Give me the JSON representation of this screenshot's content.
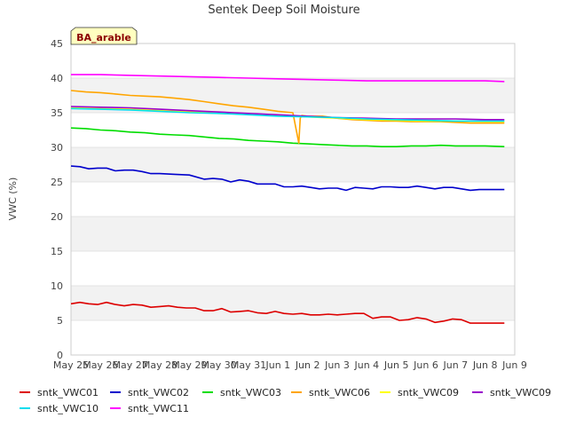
{
  "chart_data": {
    "type": "line",
    "title": "Sentek Deep Soil Moisture",
    "ylabel": "VWC (%)",
    "xlabel": "",
    "badge": "BA_arable",
    "ylim": [
      0,
      45
    ],
    "yticks": [
      0,
      5,
      10,
      15,
      20,
      25,
      30,
      35,
      40,
      45
    ],
    "xlim": [
      0,
      15
    ],
    "xticks": [
      "May 25",
      "May 26",
      "May 27",
      "May 28",
      "May 29",
      "May 30",
      "May 31",
      "Jun 1",
      "Jun 2",
      "Jun 3",
      "Jun 4",
      "Jun 5",
      "Jun 6",
      "Jun 7",
      "Jun 8",
      "Jun 9"
    ],
    "grid": true,
    "legend_position": "bottom",
    "series": [
      {
        "name": "sntk_VWC01",
        "color": "#dd0000",
        "x": [
          0,
          0.3,
          0.6,
          0.9,
          1.2,
          1.5,
          1.8,
          2.1,
          2.4,
          2.7,
          3.0,
          3.3,
          3.6,
          3.9,
          4.2,
          4.5,
          4.8,
          5.1,
          5.4,
          5.7,
          6.0,
          6.3,
          6.6,
          6.9,
          7.2,
          7.5,
          7.8,
          8.1,
          8.4,
          8.7,
          9.0,
          9.3,
          9.6,
          9.9,
          10.2,
          10.5,
          10.8,
          11.1,
          11.4,
          11.7,
          12.0,
          12.3,
          12.6,
          12.9,
          13.2,
          13.5,
          13.8,
          14.1,
          14.4,
          14.65
        ],
        "y": [
          7.4,
          7.6,
          7.4,
          7.3,
          7.6,
          7.3,
          7.1,
          7.3,
          7.2,
          6.9,
          7.0,
          7.1,
          6.9,
          6.8,
          6.8,
          6.4,
          6.4,
          6.7,
          6.2,
          6.3,
          6.4,
          6.1,
          6.0,
          6.3,
          6.0,
          5.9,
          6.0,
          5.8,
          5.8,
          5.9,
          5.8,
          5.9,
          6.0,
          6.0,
          5.3,
          5.5,
          5.5,
          5.0,
          5.1,
          5.4,
          5.2,
          4.7,
          4.9,
          5.2,
          5.1,
          4.6,
          4.6,
          4.6,
          4.6,
          4.6
        ]
      },
      {
        "name": "sntk_VWC02",
        "color": "#0000cc",
        "x": [
          0,
          0.3,
          0.6,
          0.9,
          1.2,
          1.5,
          1.8,
          2.1,
          2.4,
          2.7,
          3.0,
          3.5,
          4.0,
          4.5,
          4.8,
          5.1,
          5.4,
          5.7,
          6.0,
          6.3,
          6.6,
          6.9,
          7.2,
          7.5,
          7.8,
          8.1,
          8.4,
          8.7,
          9.0,
          9.3,
          9.6,
          9.9,
          10.2,
          10.5,
          10.8,
          11.1,
          11.4,
          11.7,
          12.0,
          12.3,
          12.6,
          12.9,
          13.2,
          13.5,
          13.8,
          14.1,
          14.4,
          14.65
        ],
        "y": [
          27.3,
          27.2,
          26.9,
          27.0,
          27.0,
          26.6,
          26.7,
          26.7,
          26.5,
          26.2,
          26.2,
          26.1,
          26.0,
          25.4,
          25.5,
          25.4,
          25.0,
          25.3,
          25.1,
          24.7,
          24.7,
          24.7,
          24.3,
          24.3,
          24.4,
          24.2,
          24.0,
          24.1,
          24.1,
          23.8,
          24.2,
          24.1,
          24.0,
          24.3,
          24.3,
          24.2,
          24.2,
          24.4,
          24.2,
          24.0,
          24.2,
          24.2,
          24.0,
          23.8,
          23.9,
          23.9,
          23.9,
          23.9
        ]
      },
      {
        "name": "sntk_VWC03",
        "color": "#00dd00",
        "x": [
          0,
          0.5,
          1.0,
          1.5,
          2.0,
          2.5,
          3.0,
          3.5,
          4.0,
          4.5,
          5.0,
          5.5,
          6.0,
          6.5,
          7.0,
          7.5,
          8.0,
          8.5,
          9.0,
          9.5,
          10.0,
          10.5,
          11.0,
          11.5,
          12.0,
          12.5,
          13.0,
          13.5,
          14.0,
          14.65
        ],
        "y": [
          32.8,
          32.7,
          32.5,
          32.4,
          32.2,
          32.1,
          31.9,
          31.8,
          31.7,
          31.5,
          31.3,
          31.2,
          31.0,
          30.9,
          30.8,
          30.6,
          30.5,
          30.4,
          30.3,
          30.2,
          30.2,
          30.1,
          30.1,
          30.2,
          30.2,
          30.3,
          30.2,
          30.2,
          30.2,
          30.1
        ]
      },
      {
        "name": "sntk_VWC06",
        "color": "#ffa500",
        "x": [
          0,
          0.5,
          1.0,
          1.5,
          2.0,
          2.5,
          3.0,
          3.5,
          4.0,
          4.5,
          5.0,
          5.5,
          6.0,
          6.5,
          7.0,
          7.5,
          7.7,
          7.75,
          7.8,
          8.0,
          8.5,
          9.0,
          9.5,
          10.0,
          10.5,
          11.0,
          11.5,
          12.0,
          12.5,
          13.0,
          13.5,
          14.0,
          14.65
        ],
        "y": [
          38.2,
          38.0,
          37.9,
          37.7,
          37.5,
          37.4,
          37.3,
          37.1,
          36.9,
          36.6,
          36.3,
          36.0,
          35.8,
          35.5,
          35.2,
          35.0,
          30.6,
          34.2,
          34.6,
          34.5,
          34.5,
          34.2,
          34.0,
          33.9,
          33.8,
          33.8,
          33.7,
          33.7,
          33.7,
          33.6,
          33.5,
          33.5,
          33.5
        ]
      },
      {
        "name": "sntk_VWC09",
        "color": "#ffff00",
        "x": [
          0,
          1.0,
          2.0,
          3.0,
          4.0,
          5.0,
          6.0,
          7.0,
          8.0,
          9.0,
          10.0,
          11.0,
          12.0,
          13.0,
          14.0,
          14.65
        ],
        "y": [
          35.7,
          35.6,
          35.5,
          35.3,
          35.1,
          34.9,
          34.8,
          34.6,
          34.4,
          34.2,
          34.0,
          33.9,
          33.8,
          33.8,
          33.7,
          33.7
        ]
      },
      {
        "name": "sntk_VWC09",
        "color": "#9900cc",
        "x": [
          0,
          1.0,
          2.0,
          3.0,
          4.0,
          5.0,
          6.0,
          7.0,
          8.0,
          9.0,
          10.0,
          11.0,
          12.0,
          13.0,
          14.0,
          14.65
        ],
        "y": [
          35.9,
          35.8,
          35.7,
          35.5,
          35.3,
          35.1,
          34.9,
          34.7,
          34.5,
          34.3,
          34.2,
          34.1,
          34.1,
          34.1,
          34.0,
          34.0
        ]
      },
      {
        "name": "sntk_VWC10",
        "color": "#00ddee",
        "x": [
          0,
          1.0,
          2.0,
          3.0,
          4.0,
          5.0,
          6.0,
          7.0,
          8.0,
          9.0,
          10.0,
          11.0,
          12.0,
          13.0,
          14.0,
          14.65
        ],
        "y": [
          35.6,
          35.5,
          35.4,
          35.2,
          35.0,
          34.9,
          34.7,
          34.5,
          34.4,
          34.3,
          34.1,
          34.0,
          33.9,
          33.8,
          33.8,
          33.8
        ]
      },
      {
        "name": "sntk_VWC11",
        "color": "#ff00ff",
        "x": [
          0,
          1.0,
          2.0,
          3.0,
          4.0,
          5.0,
          6.0,
          7.0,
          8.0,
          9.0,
          10.0,
          11.0,
          12.0,
          13.0,
          14.0,
          14.65
        ],
        "y": [
          40.5,
          40.5,
          40.4,
          40.3,
          40.2,
          40.1,
          40.0,
          39.9,
          39.8,
          39.7,
          39.6,
          39.6,
          39.6,
          39.6,
          39.6,
          39.5
        ]
      }
    ]
  }
}
